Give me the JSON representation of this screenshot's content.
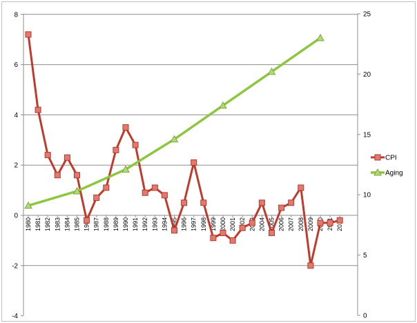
{
  "chart_data": {
    "type": "line",
    "title": "",
    "xlabel": "",
    "ylabel": "",
    "x": [
      "1980",
      "1981",
      "1982",
      "1983",
      "1984",
      "1985",
      "1986",
      "1987",
      "1988",
      "1989",
      "1990",
      "1991",
      "1992",
      "1993",
      "1994",
      "1995",
      "1996",
      "1997",
      "1998",
      "1999",
      "2000",
      "2001",
      "2002",
      "2003",
      "2004",
      "2005",
      "2006",
      "2007",
      "2008",
      "2009",
      "2010",
      "2011",
      "2012"
    ],
    "left_axis": {
      "ylim": [
        -4,
        8
      ],
      "ticks": [
        "-4",
        "-2",
        "0",
        "2",
        "4",
        "6",
        "8"
      ]
    },
    "right_axis": {
      "ylim": [
        0,
        25
      ],
      "ticks": [
        "0",
        "5",
        "10",
        "15",
        "20",
        "25"
      ]
    },
    "grid": true,
    "legend": "right",
    "series": [
      {
        "name": "CPI",
        "axis": "left",
        "color": "#c0392b",
        "marker": "square",
        "values": [
          7.2,
          4.2,
          2.4,
          1.6,
          2.3,
          1.6,
          -0.2,
          0.7,
          1.1,
          2.6,
          3.5,
          2.8,
          0.9,
          1.1,
          0.8,
          -0.6,
          0.5,
          2.1,
          0.5,
          -0.9,
          -0.7,
          -1.0,
          -0.5,
          -0.3,
          0.5,
          -0.7,
          0.3,
          0.5,
          1.1,
          -2.0,
          -0.3,
          -0.3,
          -0.2
        ]
      },
      {
        "name": "Aging",
        "axis": "right",
        "color": "#8dc63f",
        "marker": "triangle",
        "points": [
          {
            "x": "1980",
            "y": 9.1
          },
          {
            "x": "1985",
            "y": 10.3
          },
          {
            "x": "1990",
            "y": 12.1
          },
          {
            "x": "1995",
            "y": 14.6
          },
          {
            "x": "2000",
            "y": 17.4
          },
          {
            "x": "2005",
            "y": 20.2
          },
          {
            "x": "2010",
            "y": 23.0
          }
        ]
      }
    ]
  }
}
